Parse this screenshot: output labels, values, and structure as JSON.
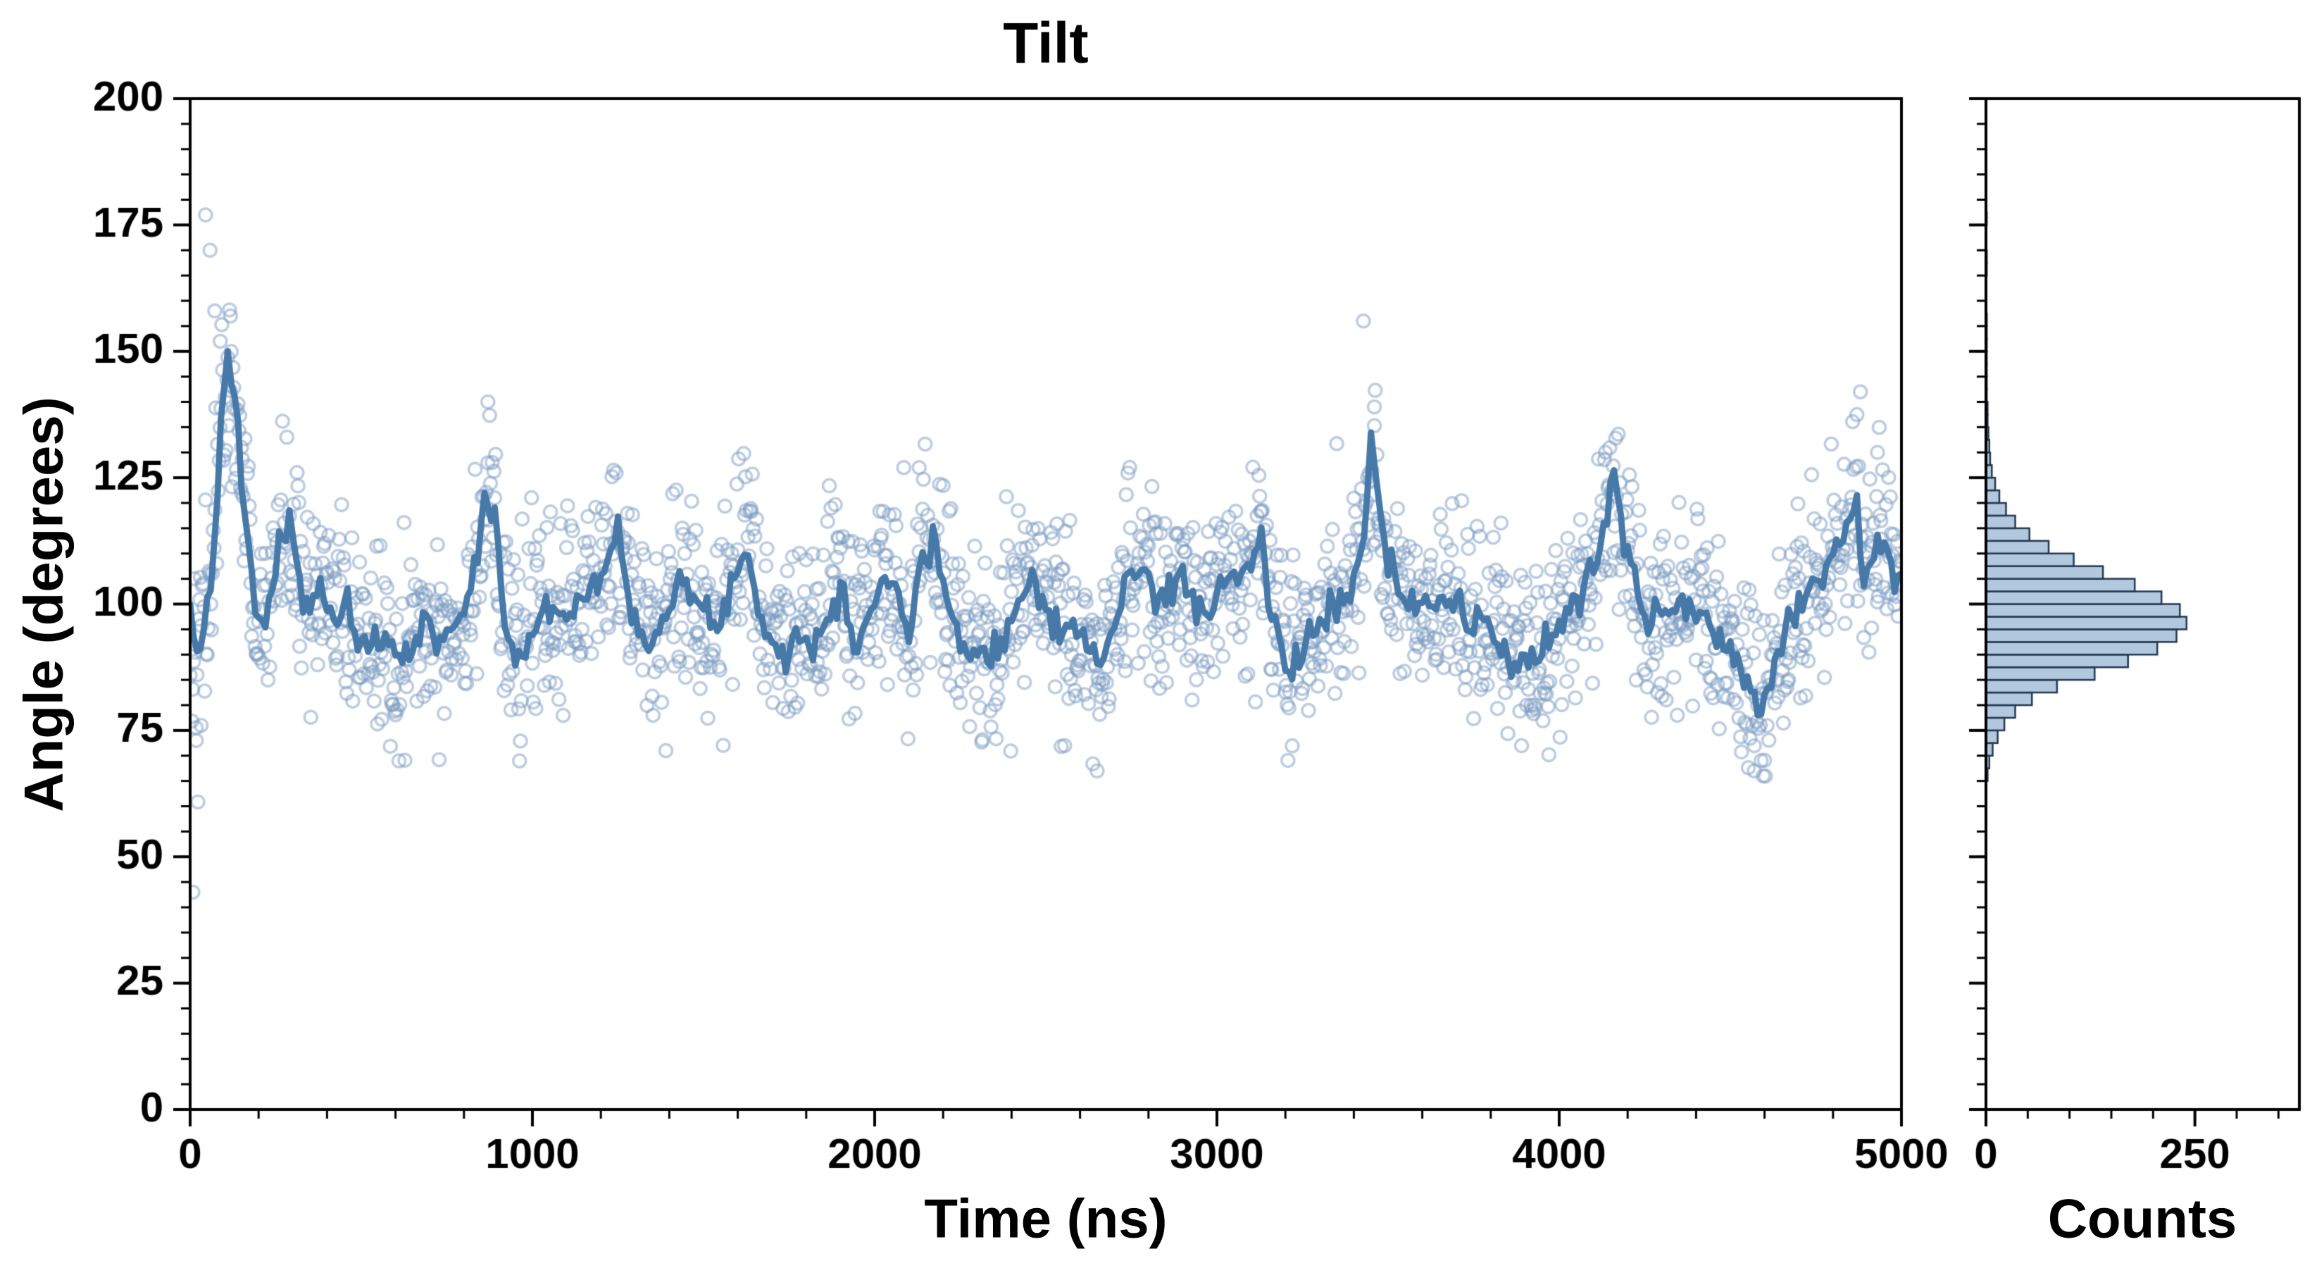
{
  "page": {
    "background": "#ffffff"
  },
  "chart_data": {
    "type": "scatter",
    "title": "Tilt",
    "xlabel": "Time (ns)",
    "ylabel": "Angle (degrees)",
    "xlim": [
      0,
      5000
    ],
    "ylim": [
      0,
      200
    ],
    "xticks": [
      0,
      1000,
      2000,
      3000,
      4000,
      5000
    ],
    "yticks": [
      0,
      25,
      50,
      75,
      100,
      125,
      150,
      175,
      200
    ],
    "x_minor_step": 200,
    "y_minor_step": 5,
    "grid": false,
    "legend": "none",
    "scatter": {
      "n": 2000,
      "dt": 2.5,
      "noise_sigma": 9.5,
      "seed": 42,
      "color": "#7b9cc2",
      "alpha": 0.5,
      "radius": 9,
      "stroke_width": 3.5
    },
    "extra_points": [
      [
        8,
        43
      ],
      [
        18,
        73
      ],
      [
        32,
        76
      ],
      [
        45,
        177
      ],
      [
        58,
        170
      ],
      [
        72,
        158
      ],
      [
        88,
        152
      ],
      [
        118,
        157
      ],
      [
        150,
        131
      ],
      [
        870,
        140
      ],
      [
        1390,
        71
      ],
      [
        2085,
        127
      ],
      [
        2130,
        127
      ],
      [
        2650,
        67
      ],
      [
        3428,
        156
      ],
      [
        3460,
        139
      ],
      [
        4570,
        67
      ],
      [
        4596,
        66
      ],
      [
        4880,
        142
      ],
      [
        4930,
        130
      ]
    ],
    "mean_line": {
      "color": "#4678a8",
      "width": 9,
      "wiggle_sigma": 1.8,
      "wiggle_step": 10,
      "wiggle_seed": 7,
      "points": [
        [
          0,
          95
        ],
        [
          30,
          91
        ],
        [
          60,
          104
        ],
        [
          90,
          134
        ],
        [
          110,
          148
        ],
        [
          130,
          141
        ],
        [
          160,
          116
        ],
        [
          200,
          95
        ],
        [
          230,
          99
        ],
        [
          260,
          112
        ],
        [
          290,
          116
        ],
        [
          320,
          104
        ],
        [
          350,
          98
        ],
        [
          380,
          104
        ],
        [
          420,
          96
        ],
        [
          450,
          100
        ],
        [
          480,
          93
        ],
        [
          520,
          90
        ],
        [
          560,
          94
        ],
        [
          600,
          90
        ],
        [
          640,
          92
        ],
        [
          680,
          95
        ],
        [
          720,
          93
        ],
        [
          760,
          96
        ],
        [
          800,
          98
        ],
        [
          840,
          110
        ],
        [
          865,
          122
        ],
        [
          890,
          117
        ],
        [
          920,
          96
        ],
        [
          950,
          89
        ],
        [
          980,
          91
        ],
        [
          1020,
          97
        ],
        [
          1060,
          100
        ],
        [
          1100,
          98
        ],
        [
          1140,
          101
        ],
        [
          1180,
          104
        ],
        [
          1220,
          108
        ],
        [
          1250,
          114
        ],
        [
          1280,
          102
        ],
        [
          1320,
          95
        ],
        [
          1360,
          94
        ],
        [
          1400,
          99
        ],
        [
          1440,
          104
        ],
        [
          1480,
          100
        ],
        [
          1520,
          96
        ],
        [
          1560,
          100
        ],
        [
          1600,
          107
        ],
        [
          1630,
          110
        ],
        [
          1660,
          100
        ],
        [
          1700,
          93
        ],
        [
          1740,
          90
        ],
        [
          1780,
          94
        ],
        [
          1820,
          92
        ],
        [
          1860,
          96
        ],
        [
          1900,
          105
        ],
        [
          1940,
          93
        ],
        [
          1980,
          97
        ],
        [
          2020,
          105
        ],
        [
          2060,
          104
        ],
        [
          2100,
          94
        ],
        [
          2140,
          108
        ],
        [
          2180,
          110
        ],
        [
          2220,
          100
        ],
        [
          2260,
          92
        ],
        [
          2300,
          90
        ],
        [
          2340,
          91
        ],
        [
          2380,
          95
        ],
        [
          2420,
          99
        ],
        [
          2460,
          106
        ],
        [
          2500,
          100
        ],
        [
          2540,
          96
        ],
        [
          2580,
          95
        ],
        [
          2620,
          92
        ],
        [
          2660,
          88
        ],
        [
          2700,
          95
        ],
        [
          2740,
          106
        ],
        [
          2780,
          108
        ],
        [
          2820,
          100
        ],
        [
          2860,
          102
        ],
        [
          2900,
          106
        ],
        [
          2940,
          100
        ],
        [
          2980,
          99
        ],
        [
          3020,
          104
        ],
        [
          3060,
          105
        ],
        [
          3100,
          108
        ],
        [
          3130,
          114
        ],
        [
          3160,
          96
        ],
        [
          3200,
          88
        ],
        [
          3240,
          90
        ],
        [
          3280,
          94
        ],
        [
          3320,
          98
        ],
        [
          3360,
          100
        ],
        [
          3400,
          104
        ],
        [
          3430,
          112
        ],
        [
          3450,
          132
        ],
        [
          3470,
          120
        ],
        [
          3500,
          106
        ],
        [
          3540,
          102
        ],
        [
          3580,
          100
        ],
        [
          3620,
          101
        ],
        [
          3660,
          99
        ],
        [
          3700,
          100
        ],
        [
          3740,
          95
        ],
        [
          3780,
          98
        ],
        [
          3820,
          92
        ],
        [
          3860,
          88
        ],
        [
          3900,
          90
        ],
        [
          3940,
          89
        ],
        [
          3980,
          94
        ],
        [
          4020,
          98
        ],
        [
          4060,
          101
        ],
        [
          4100,
          108
        ],
        [
          4140,
          118
        ],
        [
          4160,
          124
        ],
        [
          4190,
          112
        ],
        [
          4220,
          104
        ],
        [
          4260,
          96
        ],
        [
          4300,
          99
        ],
        [
          4340,
          101
        ],
        [
          4380,
          99
        ],
        [
          4420,
          97
        ],
        [
          4460,
          94
        ],
        [
          4500,
          91
        ],
        [
          4540,
          86
        ],
        [
          4580,
          80
        ],
        [
          4610,
          84
        ],
        [
          4650,
          93
        ],
        [
          4690,
          99
        ],
        [
          4730,
          103
        ],
        [
          4770,
          107
        ],
        [
          4810,
          111
        ],
        [
          4850,
          118
        ],
        [
          4870,
          122
        ],
        [
          4890,
          104
        ],
        [
          4920,
          108
        ],
        [
          4950,
          112
        ],
        [
          4980,
          106
        ],
        [
          5000,
          108
        ]
      ]
    },
    "histogram": {
      "xlabel": "Counts",
      "xlim": [
        0,
        375
      ],
      "xticks": [
        0,
        250
      ],
      "x_minor_step": 50,
      "orientation": "horizontal",
      "bin_start": 65,
      "bin_width": 2.5,
      "counts": [
        2,
        4,
        8,
        14,
        22,
        35,
        55,
        85,
        130,
        170,
        205,
        228,
        240,
        232,
        210,
        178,
        140,
        105,
        75,
        52,
        35,
        24,
        16,
        11,
        7,
        5,
        4,
        3,
        2,
        2,
        1,
        1,
        1,
        1,
        1,
        1,
        1,
        0,
        0,
        0,
        1,
        1,
        0,
        0,
        1,
        0
      ],
      "fill": "#a4bed8",
      "fill_alpha": 0.85,
      "edge": "#22384f",
      "edge_width": 2.5
    },
    "style": {
      "spine_color": "#000000",
      "spine_width": 4,
      "major_tick_len": 24,
      "minor_tick_len": 13,
      "major_tick_width": 4,
      "minor_tick_width": 3,
      "tick_label_size": 60
    }
  }
}
